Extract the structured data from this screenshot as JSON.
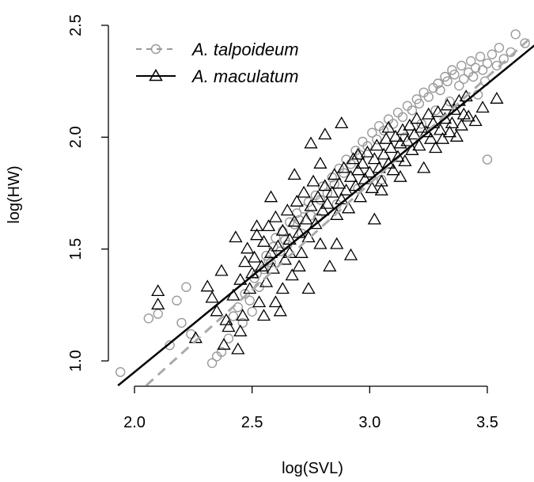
{
  "chart_data": {
    "type": "scatter",
    "title": "",
    "xlabel": "log(SVL)",
    "ylabel": "log(HW)",
    "xlim": [
      1.9,
      3.7
    ],
    "ylim": [
      0.88,
      2.5
    ],
    "xticks": [
      "2.0",
      "2.5",
      "3.0",
      "3.5"
    ],
    "yticks": [
      "1.0",
      "1.5",
      "2.0",
      "2.5"
    ],
    "grid": false,
    "legend_position": "top-left",
    "colors": {
      "talpoideum": "#999999",
      "maculatum": "#000000"
    },
    "series": [
      {
        "name": "A. talpoideum",
        "marker": "circle",
        "line_style": "dashed",
        "regression_line": {
          "x": [
            2.05,
            3.68
          ],
          "y": [
            0.89,
            2.44
          ]
        },
        "points": [
          [
            1.94,
            0.95
          ],
          [
            2.06,
            1.19
          ],
          [
            2.1,
            1.21
          ],
          [
            2.15,
            1.07
          ],
          [
            2.18,
            1.27
          ],
          [
            2.2,
            1.17
          ],
          [
            2.22,
            1.33
          ],
          [
            2.24,
            1.12
          ],
          [
            2.33,
            0.99
          ],
          [
            2.35,
            1.02
          ],
          [
            2.37,
            1.04
          ],
          [
            2.4,
            1.1
          ],
          [
            2.42,
            1.2
          ],
          [
            2.44,
            1.24
          ],
          [
            2.46,
            1.17
          ],
          [
            2.47,
            1.3
          ],
          [
            2.49,
            1.27
          ],
          [
            2.5,
            1.22
          ],
          [
            2.51,
            1.37
          ],
          [
            2.53,
            1.33
          ],
          [
            2.55,
            1.41
          ],
          [
            2.56,
            1.47
          ],
          [
            2.58,
            1.44
          ],
          [
            2.59,
            1.51
          ],
          [
            2.6,
            1.55
          ],
          [
            2.62,
            1.49
          ],
          [
            2.63,
            1.58
          ],
          [
            2.64,
            1.54
          ],
          [
            2.66,
            1.62
          ],
          [
            2.68,
            1.61
          ],
          [
            2.69,
            1.66
          ],
          [
            2.7,
            1.63
          ],
          [
            2.72,
            1.68
          ],
          [
            2.74,
            1.71
          ],
          [
            2.75,
            1.65
          ],
          [
            2.77,
            1.74
          ],
          [
            2.79,
            1.72
          ],
          [
            2.8,
            1.78
          ],
          [
            2.82,
            1.75
          ],
          [
            2.84,
            1.82
          ],
          [
            2.85,
            1.79
          ],
          [
            2.87,
            1.86
          ],
          [
            2.89,
            1.84
          ],
          [
            2.9,
            1.9
          ],
          [
            2.92,
            1.88
          ],
          [
            2.94,
            1.94
          ],
          [
            2.96,
            1.92
          ],
          [
            2.97,
            1.98
          ],
          [
            2.99,
            1.96
          ],
          [
            3.01,
            2.02
          ],
          [
            3.03,
            1.99
          ],
          [
            3.04,
            2.05
          ],
          [
            3.06,
            2.03
          ],
          [
            3.08,
            2.08
          ],
          [
            3.1,
            2.06
          ],
          [
            3.12,
            2.11
          ],
          [
            3.14,
            2.09
          ],
          [
            3.16,
            2.14
          ],
          [
            3.18,
            2.12
          ],
          [
            3.2,
            2.17
          ],
          [
            3.21,
            2.15
          ],
          [
            3.23,
            2.2
          ],
          [
            3.25,
            2.18
          ],
          [
            3.27,
            2.22
          ],
          [
            3.29,
            2.24
          ],
          [
            3.3,
            2.21
          ],
          [
            3.32,
            2.27
          ],
          [
            3.33,
            2.25
          ],
          [
            3.35,
            2.3
          ],
          [
            3.36,
            2.28
          ],
          [
            3.38,
            2.23
          ],
          [
            3.39,
            2.32
          ],
          [
            3.4,
            2.26
          ],
          [
            3.42,
            2.29
          ],
          [
            3.43,
            2.34
          ],
          [
            3.44,
            2.27
          ],
          [
            3.45,
            2.31
          ],
          [
            3.46,
            2.19
          ],
          [
            3.47,
            2.36
          ],
          [
            3.48,
            2.3
          ],
          [
            3.49,
            2.25
          ],
          [
            3.5,
            2.33
          ],
          [
            3.52,
            2.37
          ],
          [
            3.54,
            2.32
          ],
          [
            3.55,
            2.4
          ],
          [
            3.57,
            2.35
          ],
          [
            3.6,
            2.38
          ],
          [
            3.62,
            2.46
          ],
          [
            3.66,
            2.42
          ],
          [
            3.5,
            1.9
          ],
          [
            3.05,
            1.81
          ],
          [
            2.95,
            1.77
          ],
          [
            2.86,
            1.7
          ],
          [
            2.78,
            1.64
          ],
          [
            2.71,
            1.57
          ],
          [
            2.65,
            1.52
          ],
          [
            2.57,
            1.45
          ],
          [
            2.52,
            1.39
          ],
          [
            3.15,
            2.0
          ],
          [
            3.22,
            2.06
          ],
          [
            3.28,
            2.12
          ],
          [
            3.34,
            2.16
          ]
        ]
      },
      {
        "name": "A. maculatum",
        "marker": "triangle",
        "line_style": "solid",
        "regression_line": {
          "x": [
            1.93,
            3.7
          ],
          "y": [
            0.89,
            2.41
          ]
        },
        "points": [
          [
            2.1,
            1.31
          ],
          [
            2.1,
            1.25
          ],
          [
            2.26,
            1.1
          ],
          [
            2.31,
            1.33
          ],
          [
            2.33,
            1.28
          ],
          [
            2.35,
            1.22
          ],
          [
            2.37,
            1.4
          ],
          [
            2.38,
            1.07
          ],
          [
            2.4,
            1.15
          ],
          [
            2.42,
            1.29
          ],
          [
            2.43,
            1.55
          ],
          [
            2.44,
            1.05
          ],
          [
            2.45,
            1.36
          ],
          [
            2.46,
            1.2
          ],
          [
            2.47,
            1.44
          ],
          [
            2.48,
            1.5
          ],
          [
            2.49,
            1.32
          ],
          [
            2.5,
            1.39
          ],
          [
            2.51,
            1.46
          ],
          [
            2.52,
            1.56
          ],
          [
            2.53,
            1.26
          ],
          [
            2.54,
            1.42
          ],
          [
            2.55,
            1.53
          ],
          [
            2.56,
            1.35
          ],
          [
            2.57,
            1.6
          ],
          [
            2.58,
            1.48
          ],
          [
            2.59,
            1.41
          ],
          [
            2.6,
            1.64
          ],
          [
            2.61,
            1.51
          ],
          [
            2.62,
            1.22
          ],
          [
            2.63,
            1.58
          ],
          [
            2.64,
            1.45
          ],
          [
            2.65,
            1.67
          ],
          [
            2.66,
            1.54
          ],
          [
            2.67,
            1.38
          ],
          [
            2.68,
            1.62
          ],
          [
            2.69,
            1.71
          ],
          [
            2.7,
            1.57
          ],
          [
            2.71,
            1.48
          ],
          [
            2.72,
            1.75
          ],
          [
            2.73,
            1.63
          ],
          [
            2.74,
            1.55
          ],
          [
            2.75,
            1.69
          ],
          [
            2.76,
            1.8
          ],
          [
            2.77,
            1.61
          ],
          [
            2.78,
            1.73
          ],
          [
            2.79,
            1.52
          ],
          [
            2.8,
            1.67
          ],
          [
            2.81,
            1.78
          ],
          [
            2.82,
            1.7
          ],
          [
            2.83,
            1.42
          ],
          [
            2.84,
            1.75
          ],
          [
            2.85,
            1.83
          ],
          [
            2.86,
            1.65
          ],
          [
            2.87,
            1.79
          ],
          [
            2.88,
            1.72
          ],
          [
            2.89,
            1.86
          ],
          [
            2.9,
            1.76
          ],
          [
            2.91,
            1.68
          ],
          [
            2.92,
            1.82
          ],
          [
            2.93,
            1.9
          ],
          [
            2.94,
            1.78
          ],
          [
            2.95,
            1.85
          ],
          [
            2.96,
            1.73
          ],
          [
            2.97,
            1.88
          ],
          [
            2.98,
            1.81
          ],
          [
            2.99,
            1.93
          ],
          [
            3.0,
            1.84
          ],
          [
            3.01,
            1.77
          ],
          [
            3.02,
            1.9
          ],
          [
            3.03,
            1.96
          ],
          [
            3.04,
            1.86
          ],
          [
            3.05,
            1.8
          ],
          [
            3.06,
            1.92
          ],
          [
            3.07,
            1.99
          ],
          [
            3.08,
            1.88
          ],
          [
            3.09,
            1.95
          ],
          [
            3.1,
            1.85
          ],
          [
            3.11,
            2.0
          ],
          [
            3.12,
            1.91
          ],
          [
            3.13,
            1.97
          ],
          [
            3.14,
            2.03
          ],
          [
            3.15,
            1.89
          ],
          [
            3.16,
            1.98
          ],
          [
            3.17,
            2.05
          ],
          [
            3.18,
            1.94
          ],
          [
            3.19,
            2.01
          ],
          [
            3.2,
            2.08
          ],
          [
            3.21,
            1.96
          ],
          [
            3.22,
            2.04
          ],
          [
            3.23,
            1.86
          ],
          [
            3.24,
            2.02
          ],
          [
            3.25,
            2.1
          ],
          [
            3.26,
            1.99
          ],
          [
            3.27,
            2.06
          ],
          [
            3.28,
            1.95
          ],
          [
            3.29,
            2.11
          ],
          [
            3.3,
            2.03
          ],
          [
            3.31,
            1.99
          ],
          [
            3.32,
            2.08
          ],
          [
            3.33,
            2.14
          ],
          [
            3.34,
            2.02
          ],
          [
            3.35,
            2.06
          ],
          [
            3.36,
            2.12
          ],
          [
            3.37,
            2.0
          ],
          [
            3.38,
            2.16
          ],
          [
            3.39,
            2.05
          ],
          [
            3.4,
            2.1
          ],
          [
            3.41,
            2.18
          ],
          [
            3.42,
            2.09
          ],
          [
            3.45,
            2.07
          ],
          [
            3.48,
            2.13
          ],
          [
            3.54,
            2.17
          ],
          [
            2.88,
            2.06
          ],
          [
            2.75,
            1.97
          ],
          [
            2.81,
            2.01
          ],
          [
            2.63,
            1.32
          ],
          [
            2.74,
            1.32
          ],
          [
            2.92,
            1.47
          ],
          [
            3.02,
            1.63
          ],
          [
            2.55,
            1.2
          ],
          [
            2.6,
            1.26
          ],
          [
            2.45,
            1.13
          ],
          [
            2.39,
            1.18
          ],
          [
            2.95,
            1.92
          ],
          [
            3.08,
            2.04
          ],
          [
            2.68,
            1.83
          ],
          [
            2.58,
            1.73
          ],
          [
            2.52,
            1.6
          ],
          [
            2.86,
            1.52
          ],
          [
            3.13,
            1.82
          ],
          [
            3.05,
            1.76
          ],
          [
            2.79,
            1.88
          ],
          [
            2.7,
            1.42
          ],
          [
            2.66,
            1.48
          ]
        ]
      }
    ]
  }
}
